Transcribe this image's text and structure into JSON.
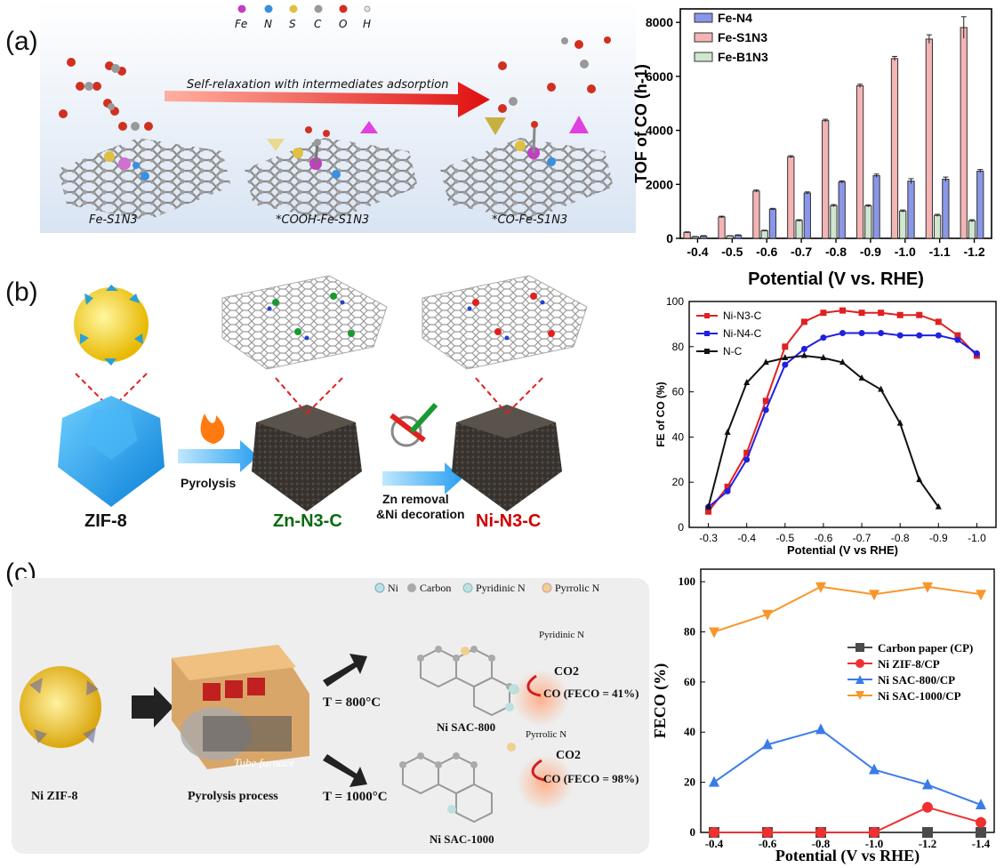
{
  "panel_labels": {
    "a": "(a)",
    "b": "(b)",
    "c": "(c)"
  },
  "panel_a": {
    "element_legend": [
      "Fe",
      "N",
      "S",
      "C",
      "O",
      "H"
    ],
    "element_colors": [
      "#c03fc0",
      "#3a8fe0",
      "#e0c040",
      "#9a9a9a",
      "#d03020",
      "#f0f0f0"
    ],
    "arrow_text": "Self-relaxation with intermediates adsorption",
    "structures": [
      "Fe-S1N3",
      "*COOH-Fe-S1N3",
      "*CO-Fe-S1N3"
    ]
  },
  "panel_b": {
    "labels": {
      "zif8": "ZIF-8",
      "pyrolysis": "Pyrolysis",
      "zn_n3c": "Zn-N3-C",
      "zn_removal": "Zn removal",
      "ni_decoration": "&Ni decoration",
      "ni_n3c": "Ni-N3-C"
    }
  },
  "panel_c": {
    "legend": [
      "Ni",
      "Carbon",
      "Pyridinic N",
      "Pyrrolic N"
    ],
    "labels": {
      "ni_zif8": "Ni ZIF-8",
      "process": "Pyrolysis process",
      "furnace": "Tube furnace",
      "t800": "T = 800°C",
      "t1000": "T = 1000°C",
      "sac800": "Ni SAC-800",
      "sac1000": "Ni SAC-1000",
      "pyridinic": "Pyridinic N",
      "pyrrolic": "Pyrrolic N",
      "co2": "CO2",
      "co800": "CO (FECO = 41%)",
      "co1000": "CO (FECO = 98%)"
    }
  },
  "chart_data": [
    {
      "id": "a",
      "type": "bar",
      "categories": [
        "-0.4",
        "-0.5",
        "-0.6",
        "-0.7",
        "-0.8",
        "-0.9",
        "-1.0",
        "-1.1",
        "-1.2"
      ],
      "series": [
        {
          "name": "Fe-N4",
          "values": [
            80,
            110,
            1080,
            1680,
            2090,
            2320,
            2120,
            2190,
            2490
          ],
          "color": "#8a96e8"
        },
        {
          "name": "Fe-S1N3",
          "values": [
            220,
            790,
            1750,
            3020,
            4360,
            5650,
            6660,
            7380,
            7810
          ],
          "color": "#f4b4b4"
        },
        {
          "name": "Fe-B1N3",
          "values": [
            60,
            90,
            280,
            660,
            1210,
            1200,
            1010,
            850,
            650
          ],
          "color": "#cfe6cf"
        }
      ],
      "errors": [
        [
          20,
          20,
          30,
          40,
          40,
          60,
          90,
          80,
          60
        ],
        [
          20,
          30,
          40,
          40,
          50,
          60,
          80,
          160,
          400
        ],
        [
          10,
          10,
          20,
          30,
          40,
          40,
          40,
          40,
          40
        ]
      ],
      "ylabel": "TOF of CO (h-1)",
      "xlabel": "Potential (V vs. RHE)",
      "ylim": [
        0,
        8500
      ],
      "yticks": [
        "0",
        "2000",
        "4000",
        "6000",
        "8000"
      ]
    },
    {
      "id": "b",
      "type": "line",
      "x": [
        -0.3,
        -0.35,
        -0.4,
        -0.45,
        -0.5,
        -0.55,
        -0.6,
        -0.65,
        -0.7,
        -0.75,
        -0.8,
        -0.85,
        -0.9,
        -0.95,
        -1.0
      ],
      "xticks": [
        "-0.3",
        "-0.4",
        "-0.5",
        "-0.6",
        "-0.7",
        "-0.8",
        "-0.9",
        "-1.0"
      ],
      "series": [
        {
          "name": "Ni-N3-C",
          "color": "#e02020",
          "values": [
            7,
            18,
            33,
            56,
            80,
            91,
            95,
            96,
            95,
            95,
            94,
            94,
            91,
            85,
            76
          ]
        },
        {
          "name": "Ni-N4-C",
          "color": "#2020e0",
          "values": [
            9,
            16,
            30,
            52,
            72,
            79,
            84,
            86,
            86,
            86,
            85,
            85,
            85,
            83,
            77
          ]
        },
        {
          "name": "N-C",
          "color": "#111111",
          "values": [
            9,
            42,
            64,
            73,
            75,
            76,
            75,
            73,
            66,
            61,
            46,
            21,
            9,
            null,
            null
          ]
        }
      ],
      "ylabel": "FE of CO (%)",
      "xlabel": "Potential (V vs RHE)",
      "ylim": [
        0,
        100
      ],
      "yticks": [
        "0",
        "20",
        "40",
        "60",
        "80",
        "100"
      ]
    },
    {
      "id": "c",
      "type": "line",
      "x": [
        -0.4,
        -0.6,
        -0.8,
        -1.0,
        -1.2,
        -1.4
      ],
      "xticks": [
        "-0.4",
        "-0.6",
        "-0.8",
        "-1.0",
        "-1.2",
        "-1.4"
      ],
      "series": [
        {
          "name": "Carbon paper (CP)",
          "color": "#4a4a4a",
          "marker": "square",
          "values": [
            0,
            0,
            0,
            0,
            0,
            0
          ]
        },
        {
          "name": "Ni ZIF-8/CP",
          "color": "#f03030",
          "marker": "circle",
          "values": [
            0,
            0,
            0,
            0,
            10,
            4
          ]
        },
        {
          "name": "Ni SAC-800/CP",
          "color": "#3a7be8",
          "marker": "triangle-up",
          "values": [
            20,
            35,
            41,
            25,
            19,
            11
          ]
        },
        {
          "name": "Ni SAC-1000/CP",
          "color": "#f8962a",
          "marker": "triangle-down",
          "values": [
            80,
            87,
            98,
            95,
            98,
            95
          ]
        }
      ],
      "ylabel": "FECO (%)",
      "xlabel": "Potential (V vs RHE)",
      "ylim": [
        0,
        105
      ],
      "yticks": [
        "0",
        "20",
        "40",
        "60",
        "80",
        "100"
      ]
    }
  ]
}
